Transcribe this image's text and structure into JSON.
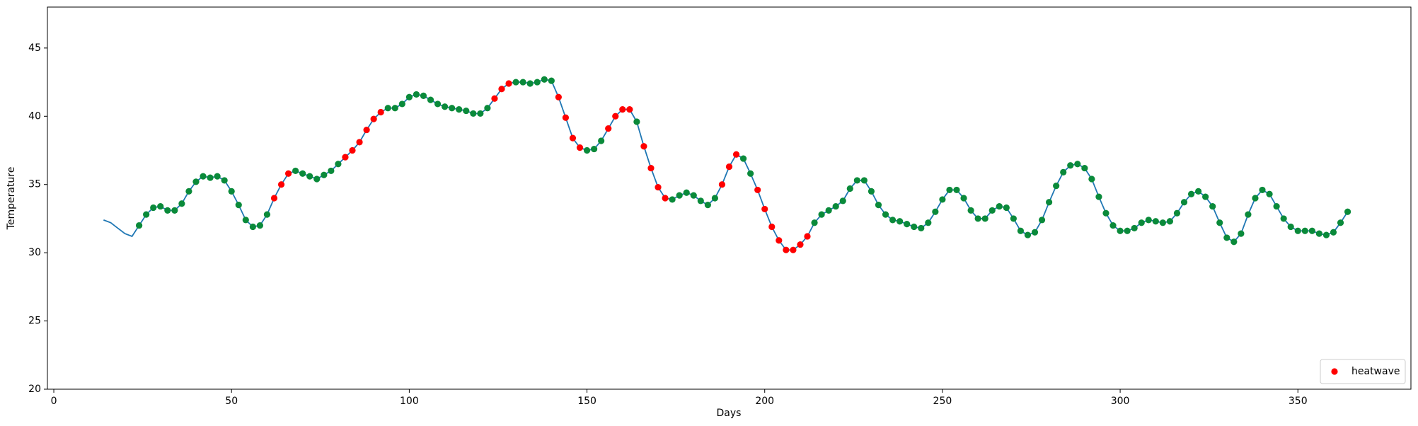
{
  "chart_data": {
    "type": "line",
    "xlabel": "Days",
    "ylabel": "Temperature",
    "xlim": [
      -1.8,
      381.8
    ],
    "ylim": [
      20,
      48
    ],
    "xticks": [
      0,
      50,
      100,
      150,
      200,
      250,
      300,
      350
    ],
    "yticks": [
      20,
      25,
      30,
      35,
      40,
      45
    ],
    "legend": "lower right",
    "series": [
      {
        "type": "line",
        "color": "#1f77b4",
        "x": [
          14,
          16,
          18,
          20,
          22,
          24,
          26,
          28,
          30,
          32,
          34,
          36,
          38,
          40,
          42,
          44,
          46,
          48,
          50,
          52,
          54,
          56,
          58,
          60,
          62,
          64,
          66,
          68,
          70,
          72,
          74,
          76,
          78,
          80,
          82,
          84,
          86,
          88,
          90,
          92,
          94,
          96,
          98,
          100,
          102,
          104,
          106,
          108,
          110,
          112,
          114,
          116,
          118,
          120,
          122,
          124,
          126,
          128,
          130,
          132,
          134,
          136,
          138,
          140,
          142,
          144,
          146,
          148,
          150,
          152,
          154,
          156,
          158,
          160,
          162,
          164,
          166,
          168,
          170,
          172,
          174,
          176,
          178,
          180,
          182,
          184,
          186,
          188,
          190,
          192,
          194,
          196,
          198,
          200,
          202,
          204,
          206,
          208,
          210,
          212,
          214,
          216,
          218,
          220,
          222,
          224,
          226,
          228,
          230,
          232,
          234,
          236,
          238,
          240,
          242,
          244,
          246,
          248,
          250,
          252,
          254,
          256,
          258,
          260,
          262,
          264,
          266,
          268,
          270,
          272,
          274,
          276,
          278,
          280,
          282,
          284,
          286,
          288,
          290,
          292,
          294,
          296,
          298,
          300,
          302,
          304,
          306,
          308,
          310,
          312,
          314,
          316,
          318,
          320,
          322,
          324,
          326,
          328,
          330,
          332,
          334,
          336,
          338,
          340,
          342,
          344,
          346,
          348,
          350,
          352,
          354,
          356,
          358,
          360,
          362,
          364
        ],
        "values": [
          32.4,
          32.2,
          31.8,
          31.4,
          31.2,
          32.0,
          32.8,
          33.3,
          33.4,
          33.1,
          33.1,
          33.6,
          34.5,
          35.2,
          35.6,
          35.5,
          35.6,
          35.3,
          34.5,
          33.5,
          32.4,
          31.9,
          32.0,
          32.8,
          34.0,
          35.0,
          35.8,
          36.0,
          35.8,
          35.6,
          35.4,
          35.7,
          36.0,
          36.5,
          37.0,
          37.5,
          38.1,
          39.0,
          39.8,
          40.3,
          40.6,
          40.6,
          40.9,
          41.4,
          41.6,
          41.5,
          41.2,
          40.9,
          40.7,
          40.6,
          40.5,
          40.4,
          40.2,
          40.2,
          40.6,
          41.3,
          42.0,
          42.4,
          42.5,
          42.5,
          42.4,
          42.5,
          42.7,
          42.6,
          41.4,
          39.9,
          38.4,
          37.7,
          37.5,
          37.6,
          38.2,
          39.1,
          40.0,
          40.5,
          40.5,
          39.6,
          37.8,
          36.2,
          34.8,
          34.0,
          33.9,
          34.2,
          34.4,
          34.2,
          33.8,
          33.5,
          34.0,
          35.0,
          36.3,
          37.2,
          36.9,
          35.8,
          34.6,
          33.2,
          31.9,
          30.9,
          30.2,
          30.2,
          30.6,
          31.2,
          32.2,
          32.8,
          33.1,
          33.4,
          33.8,
          34.7,
          35.3,
          35.3,
          34.5,
          33.5,
          32.8,
          32.4,
          32.3,
          32.1,
          31.9,
          31.8,
          32.2,
          33.0,
          33.9,
          34.6,
          34.6,
          34.0,
          33.1,
          32.5,
          32.5,
          33.1,
          33.4,
          33.3,
          32.5,
          31.6,
          31.3,
          31.5,
          32.4,
          33.7,
          34.9,
          35.9,
          36.4,
          36.5,
          36.2,
          35.4,
          34.1,
          32.9,
          32.0,
          31.6,
          31.6,
          31.8,
          32.2,
          32.4,
          32.3,
          32.2,
          32.3,
          32.9,
          33.7,
          34.3,
          34.5,
          34.1,
          33.4,
          32.2,
          31.1,
          30.8,
          31.4,
          32.8,
          34.0,
          34.6,
          34.3,
          33.4,
          32.5,
          31.9,
          31.6,
          31.6,
          31.6,
          31.4,
          31.3,
          31.5,
          32.2,
          33.0
        ]
      },
      {
        "type": "scatter",
        "name": "heatwave",
        "color": "#ff0000",
        "x": [
          62,
          64,
          66,
          82,
          84,
          86,
          88,
          90,
          92,
          124,
          126,
          128,
          142,
          144,
          146,
          148,
          156,
          158,
          160,
          162,
          166,
          168,
          170,
          172,
          188,
          190,
          192,
          198,
          200,
          202,
          204,
          206,
          208,
          210,
          212
        ],
        "values": [
          34.0,
          35.0,
          35.8,
          37.0,
          37.5,
          38.1,
          39.0,
          39.8,
          40.3,
          41.3,
          42.0,
          42.4,
          41.4,
          39.9,
          38.4,
          37.7,
          39.1,
          40.0,
          40.5,
          40.5,
          37.8,
          36.2,
          34.8,
          34.0,
          35.0,
          36.3,
          37.2,
          34.6,
          33.2,
          31.9,
          30.9,
          30.2,
          30.2,
          30.6,
          31.2
        ]
      },
      {
        "type": "scatter",
        "color": "#0a8a3a",
        "x": [
          24,
          26,
          28,
          30,
          32,
          34,
          36,
          38,
          40,
          42,
          44,
          46,
          48,
          50,
          52,
          54,
          56,
          58,
          60,
          68,
          70,
          72,
          74,
          76,
          78,
          80,
          94,
          96,
          98,
          100,
          102,
          104,
          106,
          108,
          110,
          112,
          114,
          116,
          118,
          120,
          122,
          130,
          132,
          134,
          136,
          138,
          140,
          150,
          152,
          154,
          164,
          174,
          176,
          178,
          180,
          182,
          184,
          186,
          194,
          196,
          214,
          216,
          218,
          220,
          222,
          224,
          226,
          228,
          230,
          232,
          234,
          236,
          238,
          240,
          242,
          244,
          246,
          248,
          250,
          252,
          254,
          256,
          258,
          260,
          262,
          264,
          266,
          268,
          270,
          272,
          274,
          276,
          278,
          280,
          282,
          284,
          286,
          288,
          290,
          292,
          294,
          296,
          298,
          300,
          302,
          304,
          306,
          308,
          310,
          312,
          314,
          316,
          318,
          320,
          322,
          324,
          326,
          328,
          330,
          332,
          334,
          336,
          338,
          340,
          342,
          344,
          346,
          348,
          350,
          352,
          354,
          356,
          358,
          360,
          362,
          364
        ],
        "values": [
          32.0,
          32.8,
          33.3,
          33.4,
          33.1,
          33.1,
          33.6,
          34.5,
          35.2,
          35.6,
          35.5,
          35.6,
          35.3,
          34.5,
          33.5,
          32.4,
          31.9,
          32.0,
          32.8,
          36.0,
          35.8,
          35.6,
          35.4,
          35.7,
          36.0,
          36.5,
          40.6,
          40.6,
          40.9,
          41.4,
          41.6,
          41.5,
          41.2,
          40.9,
          40.7,
          40.6,
          40.5,
          40.4,
          40.2,
          40.2,
          40.6,
          42.5,
          42.5,
          42.4,
          42.5,
          42.7,
          42.6,
          37.5,
          37.6,
          38.2,
          39.6,
          33.9,
          34.2,
          34.4,
          34.2,
          33.8,
          33.5,
          34.0,
          36.9,
          35.8,
          32.2,
          32.8,
          33.1,
          33.4,
          33.8,
          34.7,
          35.3,
          35.3,
          34.5,
          33.5,
          32.8,
          32.4,
          32.3,
          32.1,
          31.9,
          31.8,
          32.2,
          33.0,
          33.9,
          34.6,
          34.6,
          34.0,
          33.1,
          32.5,
          32.5,
          33.1,
          33.4,
          33.3,
          32.5,
          31.6,
          31.3,
          31.5,
          32.4,
          33.7,
          34.9,
          35.9,
          36.4,
          36.5,
          36.2,
          35.4,
          34.1,
          32.9,
          32.0,
          31.6,
          31.6,
          31.8,
          32.2,
          32.4,
          32.3,
          32.2,
          32.3,
          32.9,
          33.7,
          34.3,
          34.5,
          34.1,
          33.4,
          32.2,
          31.1,
          30.8,
          31.4,
          32.8,
          34.0,
          34.6,
          34.3,
          33.4,
          32.5,
          31.9,
          31.6,
          31.6,
          31.6,
          31.4,
          31.3,
          31.5,
          32.2,
          33.0
        ]
      }
    ]
  }
}
